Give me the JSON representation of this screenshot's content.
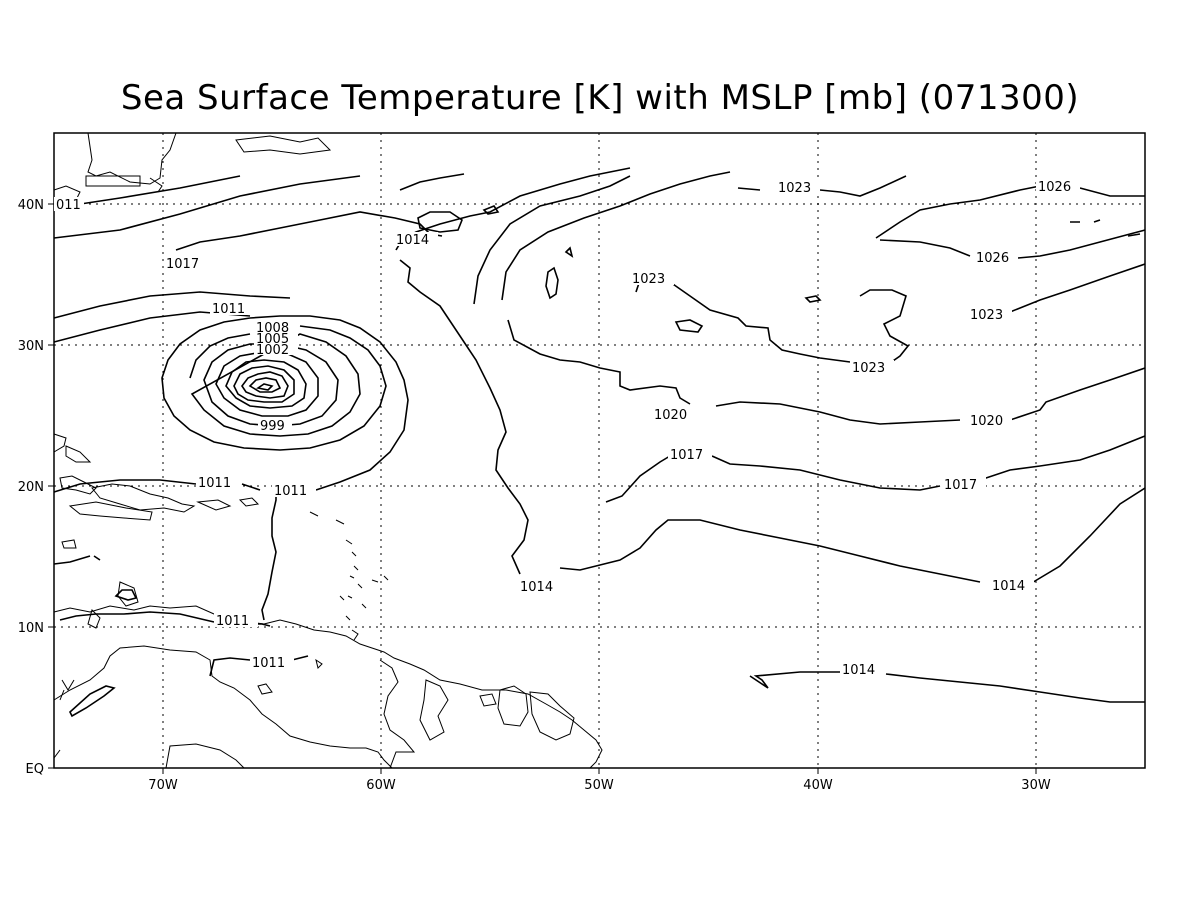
{
  "title": "Sea Surface Temperature [K] with MSLP [mb] (071300)",
  "x_ticks": [
    "70W",
    "60W",
    "50W",
    "40W",
    "30W"
  ],
  "y_ticks": [
    "EQ",
    "10N",
    "20N",
    "30N",
    "40N"
  ],
  "contour_labels": {
    "l1011_edge": "011",
    "l1017_west": "1017",
    "l1014_north": "1014",
    "l1023_a": "1023",
    "l1026_a": "1026",
    "l1026_b": "1026",
    "l1023_b": "1023",
    "l1023_c": "1023",
    "l1023_d": "1023",
    "l1011_west": "1011",
    "l1008": "1008",
    "l1005": "1005",
    "l1002": "1002",
    "l999": "999",
    "l1020_a": "1020",
    "l1020_b": "1020",
    "l1017_a": "1017",
    "l1017_b": "1017",
    "l1011_c": "1011",
    "l1011_d": "1011",
    "l1014_a": "1014",
    "l1014_b": "1014",
    "l1011_e": "1011",
    "l1011_f": "1011",
    "l1014_c": "1014"
  }
}
